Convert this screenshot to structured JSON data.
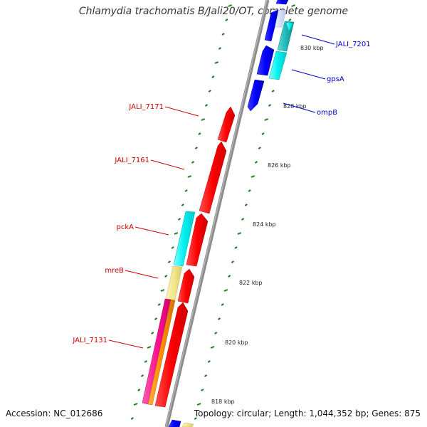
{
  "title": "Chlamydia trachomatis B/Jali20/OT, complete genome",
  "footer": {
    "accession": "Accession: NC_012686",
    "summary": "Topology: circular; Length: 1,044,352 bp; Genes: 875"
  },
  "kbp_ticks": [
    "830 kbp",
    "828 kbp",
    "826 kbp",
    "824 kbp",
    "822 kbp",
    "820 kbp",
    "818 kbp"
  ],
  "gene_labels_reverse": [
    "JALI_7171",
    "JALI_7161",
    "pckA",
    "mreB",
    "JALI_7131"
  ],
  "gene_labels_forward": [
    "JALI_7201",
    "gpsA",
    "ompB"
  ],
  "colors": {
    "reverse_label": "#cc0000",
    "forward_label": "#0000cc",
    "backbone": "#888888",
    "gc_skew_dots": "#1a7a1a",
    "red_cds": "#ff0000",
    "blue_cds": "#0000ff",
    "cyan_cds": "#00ffff",
    "teal_cds": "#20c0c0",
    "khaki_cds": "#f0e68c",
    "orange_cds": "#ff8c00",
    "magenta_cds": "#ff1493"
  }
}
